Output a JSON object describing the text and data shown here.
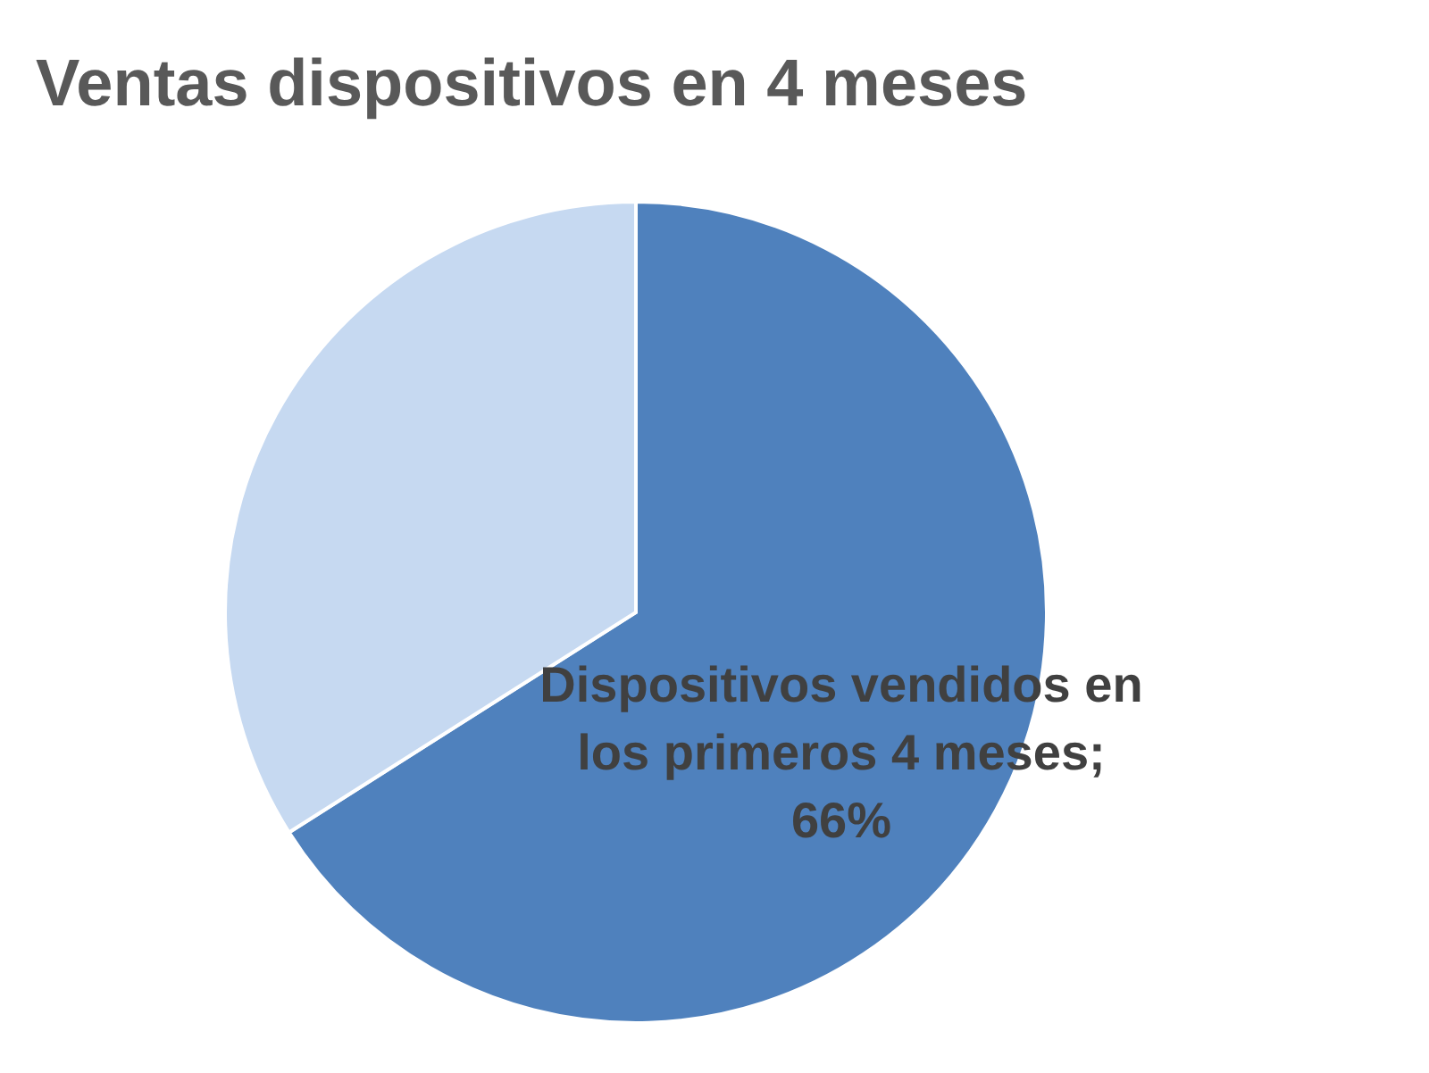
{
  "chart_data": {
    "type": "pie",
    "title": "Ventas dispositivos en 4 meses",
    "categories": [
      "Dispositivos vendidos en los primeros 4 meses",
      null
    ],
    "values": [
      66,
      34
    ],
    "colors": [
      "#4f81bd",
      "#c6d9f1"
    ],
    "value_labels": [
      "; 66%",
      null
    ],
    "legend": false
  }
}
